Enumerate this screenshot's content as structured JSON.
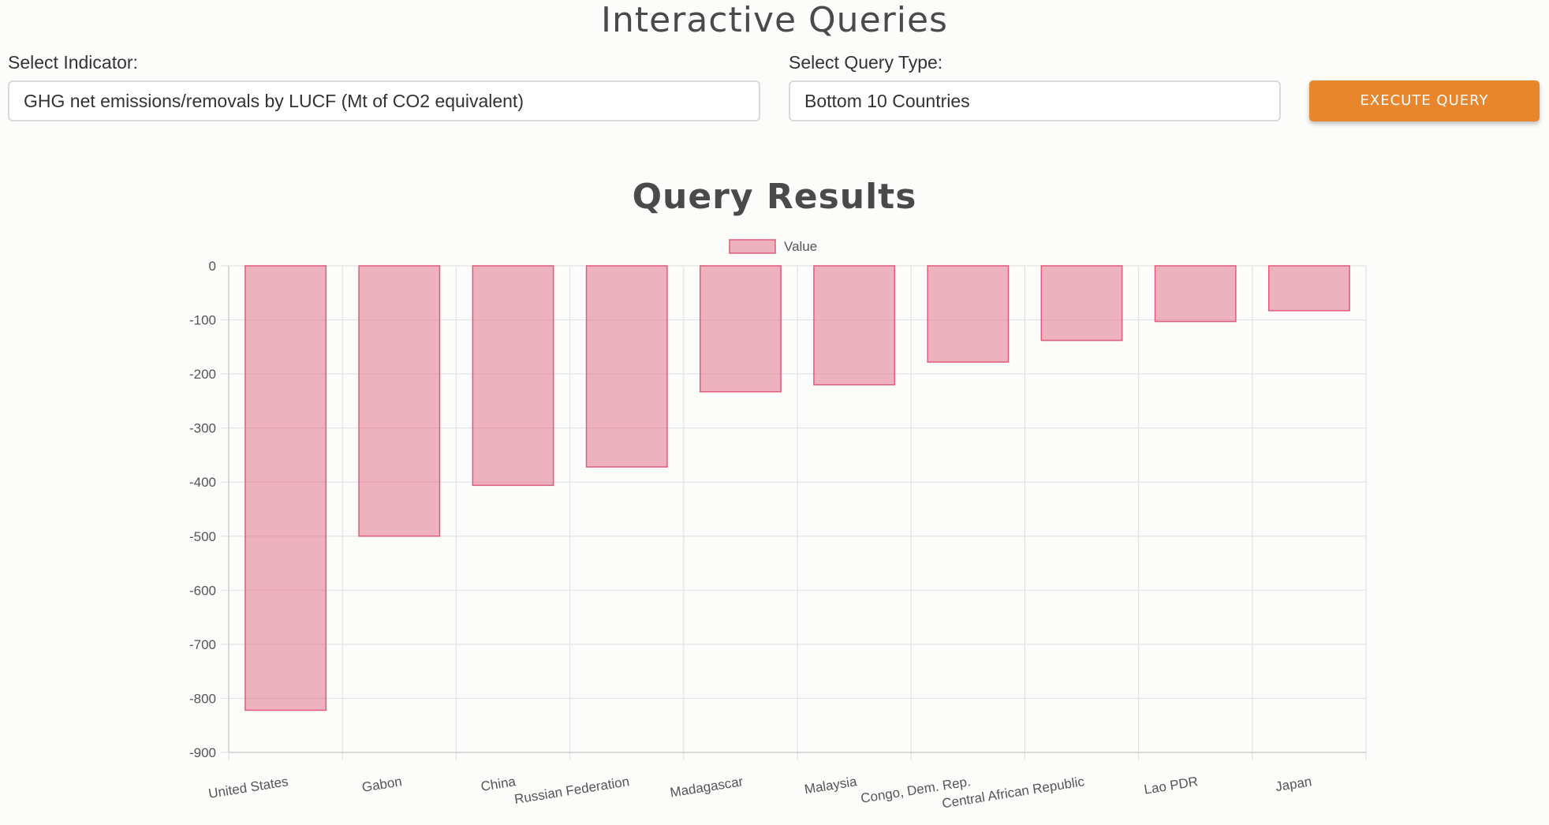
{
  "page": {
    "title": "Interactive Queries"
  },
  "controls": {
    "indicator_label": "Select Indicator:",
    "indicator_value": "GHG net emissions/removals by LUCF (Mt of CO2 equivalent)",
    "query_type_label": "Select Query Type:",
    "query_type_value": "Bottom 10 Countries",
    "execute_label": "EXECUTE QUERY"
  },
  "results": {
    "title": "Query Results"
  },
  "colors": {
    "bar_fill": "rgba(226, 114, 140, 0.55)",
    "bar_stroke": "#e05c7c",
    "button": "#e8862e",
    "grid": "#e2e2e2"
  },
  "chart_data": {
    "type": "bar",
    "categories": [
      "United States",
      "Gabon",
      "China",
      "Russian Federation",
      "Madagascar",
      "Malaysia",
      "Congo, Dem. Rep.",
      "Central African Republic",
      "Lao PDR",
      "Japan"
    ],
    "series": [
      {
        "name": "Value",
        "values": [
          -822,
          -500,
          -406,
          -372,
          -233,
          -220,
          -178,
          -138,
          -103,
          -83
        ]
      }
    ],
    "ylim": [
      -900,
      0
    ],
    "yticks": [
      0,
      -100,
      -200,
      -300,
      -400,
      -500,
      -600,
      -700,
      -800,
      -900
    ],
    "legend": "top-center",
    "grid": true
  }
}
